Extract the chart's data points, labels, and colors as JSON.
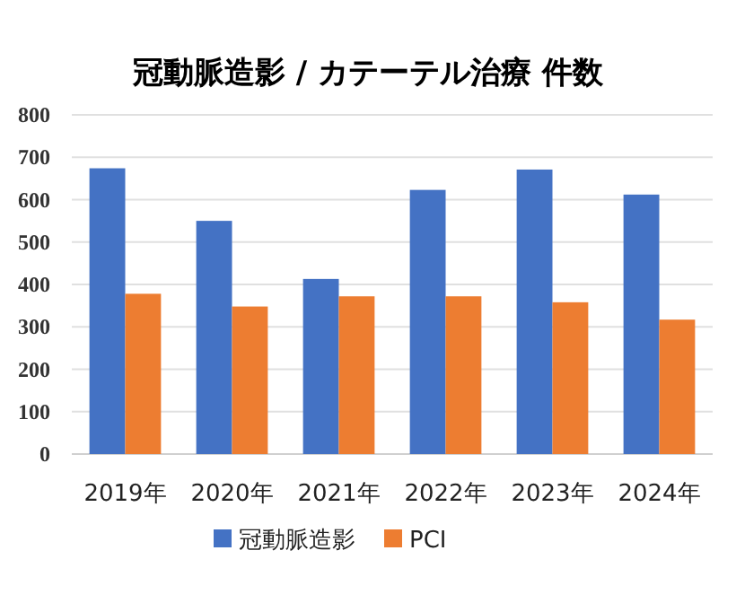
{
  "chart_data": {
    "type": "bar",
    "title": "冠動脈造影 / カテーテル治療 件数",
    "categories": [
      "2019年",
      "2020年",
      "2021年",
      "2022年",
      "2023年",
      "2024年"
    ],
    "series": [
      {
        "name": "冠動脈造影",
        "color": "#4472c4",
        "values": [
          674,
          550,
          413,
          623,
          671,
          612
        ]
      },
      {
        "name": "PCI",
        "color": "#ed7d31",
        "values": [
          378,
          348,
          372,
          372,
          358,
          317
        ]
      }
    ],
    "ylim": [
      0,
      800
    ],
    "yticks": [
      0,
      100,
      200,
      300,
      400,
      500,
      600,
      700,
      800
    ],
    "grid": "y",
    "legend": "bottom"
  }
}
